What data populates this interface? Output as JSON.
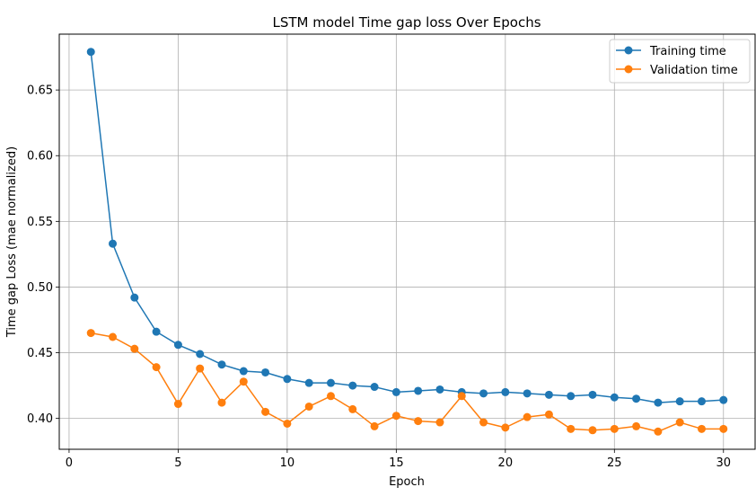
{
  "chart_data": {
    "type": "line",
    "title": "LSTM model Time gap loss Over Epochs",
    "xlabel": "Epoch",
    "ylabel": "Time gap Loss (mae normalized)",
    "xlim": [
      -0.45,
      31.45
    ],
    "ylim": [
      0.3765,
      0.6925
    ],
    "xticks": [
      0,
      5,
      10,
      15,
      20,
      25,
      30
    ],
    "xtick_labels": [
      "0",
      "5",
      "10",
      "15",
      "20",
      "25",
      "30"
    ],
    "yticks": [
      0.4,
      0.45,
      0.5,
      0.55,
      0.6,
      0.65
    ],
    "ytick_labels": [
      "0.40",
      "0.45",
      "0.50",
      "0.55",
      "0.60",
      "0.65"
    ],
    "grid": true,
    "legend_position": "top-right",
    "x": [
      1,
      2,
      3,
      4,
      5,
      6,
      7,
      8,
      9,
      10,
      11,
      12,
      13,
      14,
      15,
      16,
      17,
      18,
      19,
      20,
      21,
      22,
      23,
      24,
      25,
      26,
      27,
      28,
      29,
      30
    ],
    "series": [
      {
        "name": "Training time",
        "color": "#1f77b4",
        "values": [
          0.679,
          0.533,
          0.492,
          0.466,
          0.456,
          0.449,
          0.441,
          0.436,
          0.435,
          0.43,
          0.427,
          0.427,
          0.425,
          0.424,
          0.42,
          0.421,
          0.422,
          0.42,
          0.419,
          0.42,
          0.419,
          0.418,
          0.417,
          0.418,
          0.416,
          0.415,
          0.412,
          0.413,
          0.413,
          0.414
        ]
      },
      {
        "name": "Validation time",
        "color": "#ff7f0e",
        "values": [
          0.465,
          0.462,
          0.453,
          0.439,
          0.411,
          0.438,
          0.412,
          0.428,
          0.405,
          0.396,
          0.409,
          0.417,
          0.407,
          0.394,
          0.402,
          0.398,
          0.397,
          0.417,
          0.397,
          0.393,
          0.401,
          0.403,
          0.392,
          0.391,
          0.392,
          0.394,
          0.39,
          0.397,
          0.392,
          0.392
        ]
      }
    ]
  }
}
